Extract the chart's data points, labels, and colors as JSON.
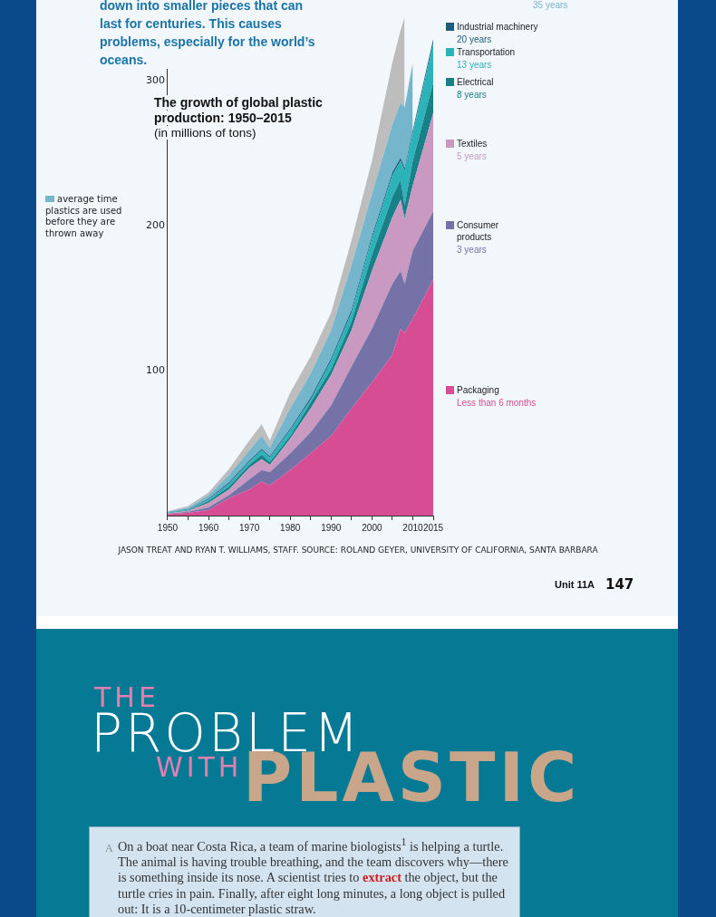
{
  "chart_data": {
    "type": "area",
    "title": "The growth of global plastic production: 1950–2015",
    "subtitle": "(in millions of tons)",
    "x": [
      1950,
      1955,
      1960,
      1965,
      1970,
      1973,
      1975,
      1980,
      1985,
      1990,
      1995,
      2000,
      2005,
      2007,
      2008,
      2010,
      2015
    ],
    "series": [
      {
        "name": "Packaging",
        "color": "#d64d94",
        "values": [
          1,
          2,
          3.7,
          12,
          18,
          23.5,
          21,
          31.5,
          43,
          55,
          74,
          92,
          111,
          129,
          126,
          136,
          163
        ]
      },
      {
        "name": "Consumer products",
        "color": "#7472a6",
        "values": [
          0.2,
          0.6,
          1.9,
          2,
          7,
          8,
          9,
          11.5,
          14.5,
          21,
          29,
          37,
          49,
          40,
          34,
          47,
          47
        ]
      },
      {
        "name": "Textiles",
        "color": "#c999c1",
        "values": [
          0.3,
          0.7,
          3.1,
          4,
          8,
          7.5,
          5,
          10,
          16.5,
          21,
          25,
          40,
          46,
          49,
          45,
          45,
          68
        ]
      },
      {
        "name": "Electrical",
        "color": "#1a8088",
        "values": [
          0.3,
          0.5,
          1.3,
          2,
          2,
          3,
          2,
          2,
          4,
          4,
          6,
          11,
          14,
          14,
          9,
          17,
          21
        ]
      },
      {
        "name": "Transportation",
        "color": "#2ab3b8",
        "values": [
          0.2,
          0.4,
          1,
          2,
          2,
          3,
          3,
          4,
          2,
          6,
          6,
          11,
          15,
          13,
          24,
          19,
          27
        ]
      },
      {
        "name": "Industrial machinery",
        "color": "#1d5c7c",
        "values": [
          0.2,
          0.3,
          0.5,
          1,
          1,
          1,
          1,
          1,
          1.5,
          1.5,
          2,
          2,
          2,
          2,
          2,
          2,
          3
        ]
      },
      {
        "color": "#75b6cc",
        "values": [
          0.4,
          1,
          2.5,
          5,
          7,
          9,
          6,
          14,
          16.5,
          19.5,
          31,
          29,
          33,
          38,
          42,
          47,
          null
        ]
      },
      {
        "color": "#bdbdbd",
        "values": [
          0.4,
          1,
          2,
          4,
          7,
          8,
          5,
          11,
          12,
          12,
          17,
          23,
          43,
          50,
          62,
          null,
          null
        ]
      }
    ],
    "stacked": true,
    "legend": "right",
    "marker": "none",
    "xlim": [
      1950,
      2015
    ],
    "xticks": [
      1950,
      {
        "value": 1955,
        "label": null
      },
      1960,
      {
        "value": 1965,
        "label": null
      },
      1970,
      {
        "value": 1975,
        "label": null
      },
      1980,
      {
        "value": 1985,
        "label": null
      },
      1990,
      {
        "value": 1995,
        "label": null
      },
      2000,
      {
        "value": 2005,
        "label": null
      },
      2010,
      2015
    ],
    "ylim": [
      0,
      350
    ],
    "yticks": [
      100,
      200,
      300
    ],
    "annotations": [
      "down into smaller pieces that can last for centuries. This causes problems, especially for the world’s oceans.",
      "average time plastics are used before they are thrown away",
      "35 years",
      "20 years",
      "13 years",
      "8 years",
      "5 years",
      "3 years",
      "Less than 6 months",
      "JASON TREAT AND RYAN T. WILLIAMS, STAFF. SOURCE: ROLAND GEYER, UNIVERSITY OF CALIFORNIA, SANTA BARBARA",
      "Unit 11A",
      "147",
      "THE",
      "PROBLEM",
      "WITH",
      "PLASTIC",
      "A",
      "On a boat near Costa Rica, a team of marine biologists$^{1}$ is helping a turtle. The animal is having trouble breathing, and the team discovers why—there is something inside its nose. A scientist tries to",
      "extract",
      "the object, but the turtle cries in pain. Finally, after eight long minutes, a long object is pulled out: It is a 10-centimeter plastic straw."
    ]
  }
}
